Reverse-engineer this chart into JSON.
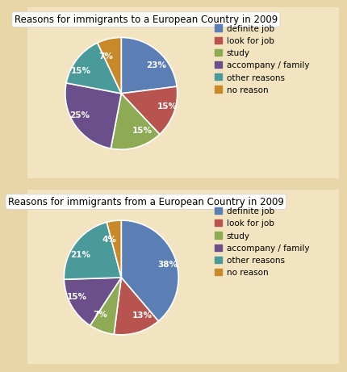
{
  "chart1": {
    "title": "Reasons for immigrants to a European Country in 2009",
    "values": [
      23,
      15,
      15,
      25,
      15,
      7
    ],
    "labels": [
      "23%",
      "15%",
      "15%",
      "25%",
      "15%",
      "7%"
    ],
    "colors": [
      "#5b7fb5",
      "#b85450",
      "#8faa54",
      "#6b4f8a",
      "#4a9a9a",
      "#c8892a"
    ],
    "startangle": 90
  },
  "chart2": {
    "title": "Reasons for immigrants from a European Country in 2009",
    "values": [
      38,
      13,
      7,
      15,
      21,
      4
    ],
    "labels": [
      "38%",
      "13%",
      "7%",
      "15%",
      "21%",
      "4%"
    ],
    "colors": [
      "#5b7fb5",
      "#b85450",
      "#8faa54",
      "#6b4f8a",
      "#4a9a9a",
      "#c8892a"
    ],
    "startangle": 90
  },
  "legend_labels": [
    "definite job",
    "look for job",
    "study",
    "accompany / family",
    "other reasons",
    "no reason"
  ],
  "legend_colors": [
    "#5b7fb5",
    "#b85450",
    "#8faa54",
    "#6b4f8a",
    "#4a9a9a",
    "#c8892a"
  ],
  "bg_color": "#e8d5a8",
  "panel_color": "#f2e4c0",
  "title_fontsize": 8.5,
  "label_fontsize": 7.5,
  "legend_fontsize": 7.5
}
